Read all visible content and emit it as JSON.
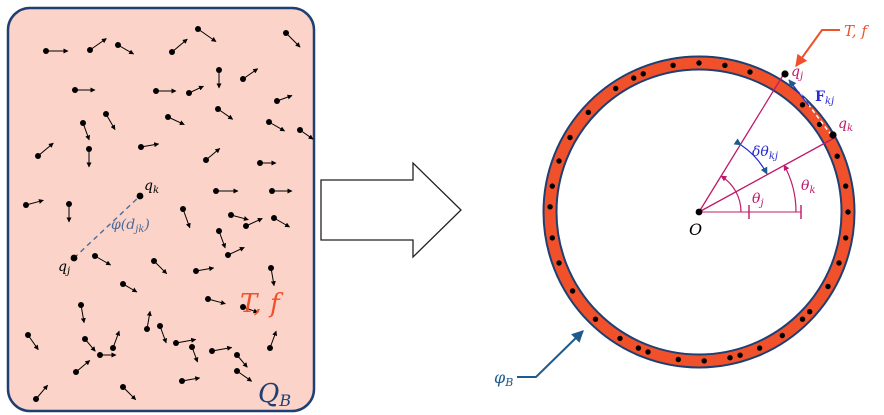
{
  "left_panel": {
    "fill": "#fbd3c8",
    "stroke": "#1f3f73",
    "region_label": "Q",
    "region_sub": "B",
    "temp_label": "T, f",
    "temp_color": "#f0502a",
    "particle_q_k": "q",
    "particle_q_k_sub": "k",
    "particle_q_j": "q",
    "particle_q_j_sub": "j",
    "potential_label": "φ(d",
    "potential_sub": "jk",
    "potential_close": ")",
    "potential_color": "#4a6a9a"
  },
  "right_panel": {
    "ring_color": "#f0502a",
    "ring_border": "#1f3f73",
    "origin_label": "O",
    "bath_label": "T, f",
    "bath_color": "#f0502a",
    "boundary_label": "φ",
    "boundary_sub": "B",
    "boundary_color": "#1f5a8c",
    "q_j": "q",
    "q_j_sub": "j",
    "q_k": "q",
    "q_k_sub": "k",
    "force_label": "F",
    "force_sub": "kj",
    "force_color": "#2a2ad0",
    "delta_theta": "δθ",
    "delta_theta_sub": "kj",
    "theta_j": "θ",
    "theta_j_sub": "j",
    "theta_k": "θ",
    "theta_k_sub": "k",
    "angle_color": "#c0186a"
  },
  "arrow": {
    "stroke": "#222222"
  }
}
